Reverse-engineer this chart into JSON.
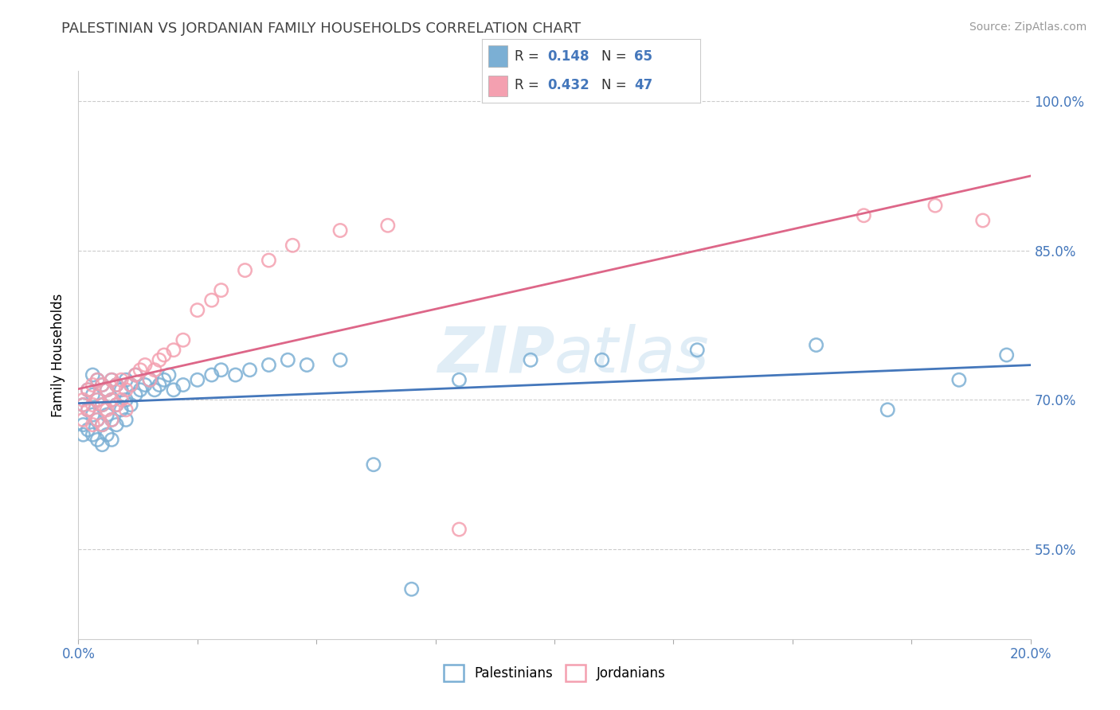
{
  "title": "PALESTINIAN VS JORDANIAN FAMILY HOUSEHOLDS CORRELATION CHART",
  "source": "Source: ZipAtlas.com",
  "ylabel": "Family Households",
  "xlim": [
    0.0,
    0.2
  ],
  "ylim": [
    0.46,
    1.03
  ],
  "yticks": [
    0.55,
    0.7,
    0.85,
    1.0
  ],
  "ytick_labels": [
    "55.0%",
    "70.0%",
    "85.0%",
    "100.0%"
  ],
  "palestinians_R": 0.148,
  "palestinians_N": 65,
  "jordanians_R": 0.432,
  "jordanians_N": 47,
  "palestinians_color": "#7bafd4",
  "jordanians_color": "#f4a0b0",
  "palestinians_line_color": "#4477bb",
  "jordanians_line_color": "#dd6688",
  "background_color": "#ffffff",
  "grid_color": "#cccccc",
  "palestinians_x": [
    0.001,
    0.001,
    0.001,
    0.002,
    0.002,
    0.002,
    0.003,
    0.003,
    0.003,
    0.003,
    0.004,
    0.004,
    0.004,
    0.004,
    0.005,
    0.005,
    0.005,
    0.005,
    0.006,
    0.006,
    0.006,
    0.007,
    0.007,
    0.007,
    0.007,
    0.008,
    0.008,
    0.008,
    0.009,
    0.009,
    0.01,
    0.01,
    0.01,
    0.011,
    0.011,
    0.012,
    0.012,
    0.013,
    0.014,
    0.015,
    0.016,
    0.017,
    0.018,
    0.019,
    0.02,
    0.022,
    0.025,
    0.028,
    0.03,
    0.033,
    0.036,
    0.04,
    0.044,
    0.048,
    0.055,
    0.062,
    0.07,
    0.08,
    0.095,
    0.11,
    0.13,
    0.155,
    0.17,
    0.185,
    0.195
  ],
  "palestinians_y": [
    0.695,
    0.675,
    0.665,
    0.71,
    0.69,
    0.67,
    0.725,
    0.705,
    0.685,
    0.665,
    0.72,
    0.7,
    0.68,
    0.66,
    0.715,
    0.695,
    0.675,
    0.655,
    0.71,
    0.685,
    0.665,
    0.72,
    0.7,
    0.68,
    0.66,
    0.715,
    0.695,
    0.675,
    0.71,
    0.69,
    0.72,
    0.7,
    0.68,
    0.715,
    0.695,
    0.725,
    0.705,
    0.71,
    0.715,
    0.72,
    0.71,
    0.715,
    0.72,
    0.725,
    0.71,
    0.715,
    0.72,
    0.725,
    0.73,
    0.725,
    0.73,
    0.735,
    0.74,
    0.735,
    0.74,
    0.635,
    0.51,
    0.72,
    0.74,
    0.74,
    0.75,
    0.755,
    0.69,
    0.72,
    0.745
  ],
  "jordanians_x": [
    0.001,
    0.001,
    0.001,
    0.002,
    0.002,
    0.003,
    0.003,
    0.003,
    0.004,
    0.004,
    0.004,
    0.005,
    0.005,
    0.005,
    0.006,
    0.006,
    0.007,
    0.007,
    0.007,
    0.008,
    0.008,
    0.009,
    0.009,
    0.01,
    0.01,
    0.011,
    0.012,
    0.013,
    0.014,
    0.015,
    0.016,
    0.017,
    0.018,
    0.02,
    0.022,
    0.025,
    0.028,
    0.03,
    0.035,
    0.04,
    0.045,
    0.055,
    0.065,
    0.08,
    0.165,
    0.18,
    0.19
  ],
  "jordanians_y": [
    0.695,
    0.7,
    0.68,
    0.71,
    0.69,
    0.715,
    0.695,
    0.675,
    0.72,
    0.7,
    0.68,
    0.715,
    0.695,
    0.675,
    0.71,
    0.69,
    0.72,
    0.7,
    0.68,
    0.715,
    0.695,
    0.72,
    0.7,
    0.71,
    0.69,
    0.715,
    0.725,
    0.73,
    0.735,
    0.72,
    0.73,
    0.74,
    0.745,
    0.75,
    0.76,
    0.79,
    0.8,
    0.81,
    0.83,
    0.84,
    0.855,
    0.87,
    0.875,
    0.57,
    0.885,
    0.895,
    0.88
  ]
}
